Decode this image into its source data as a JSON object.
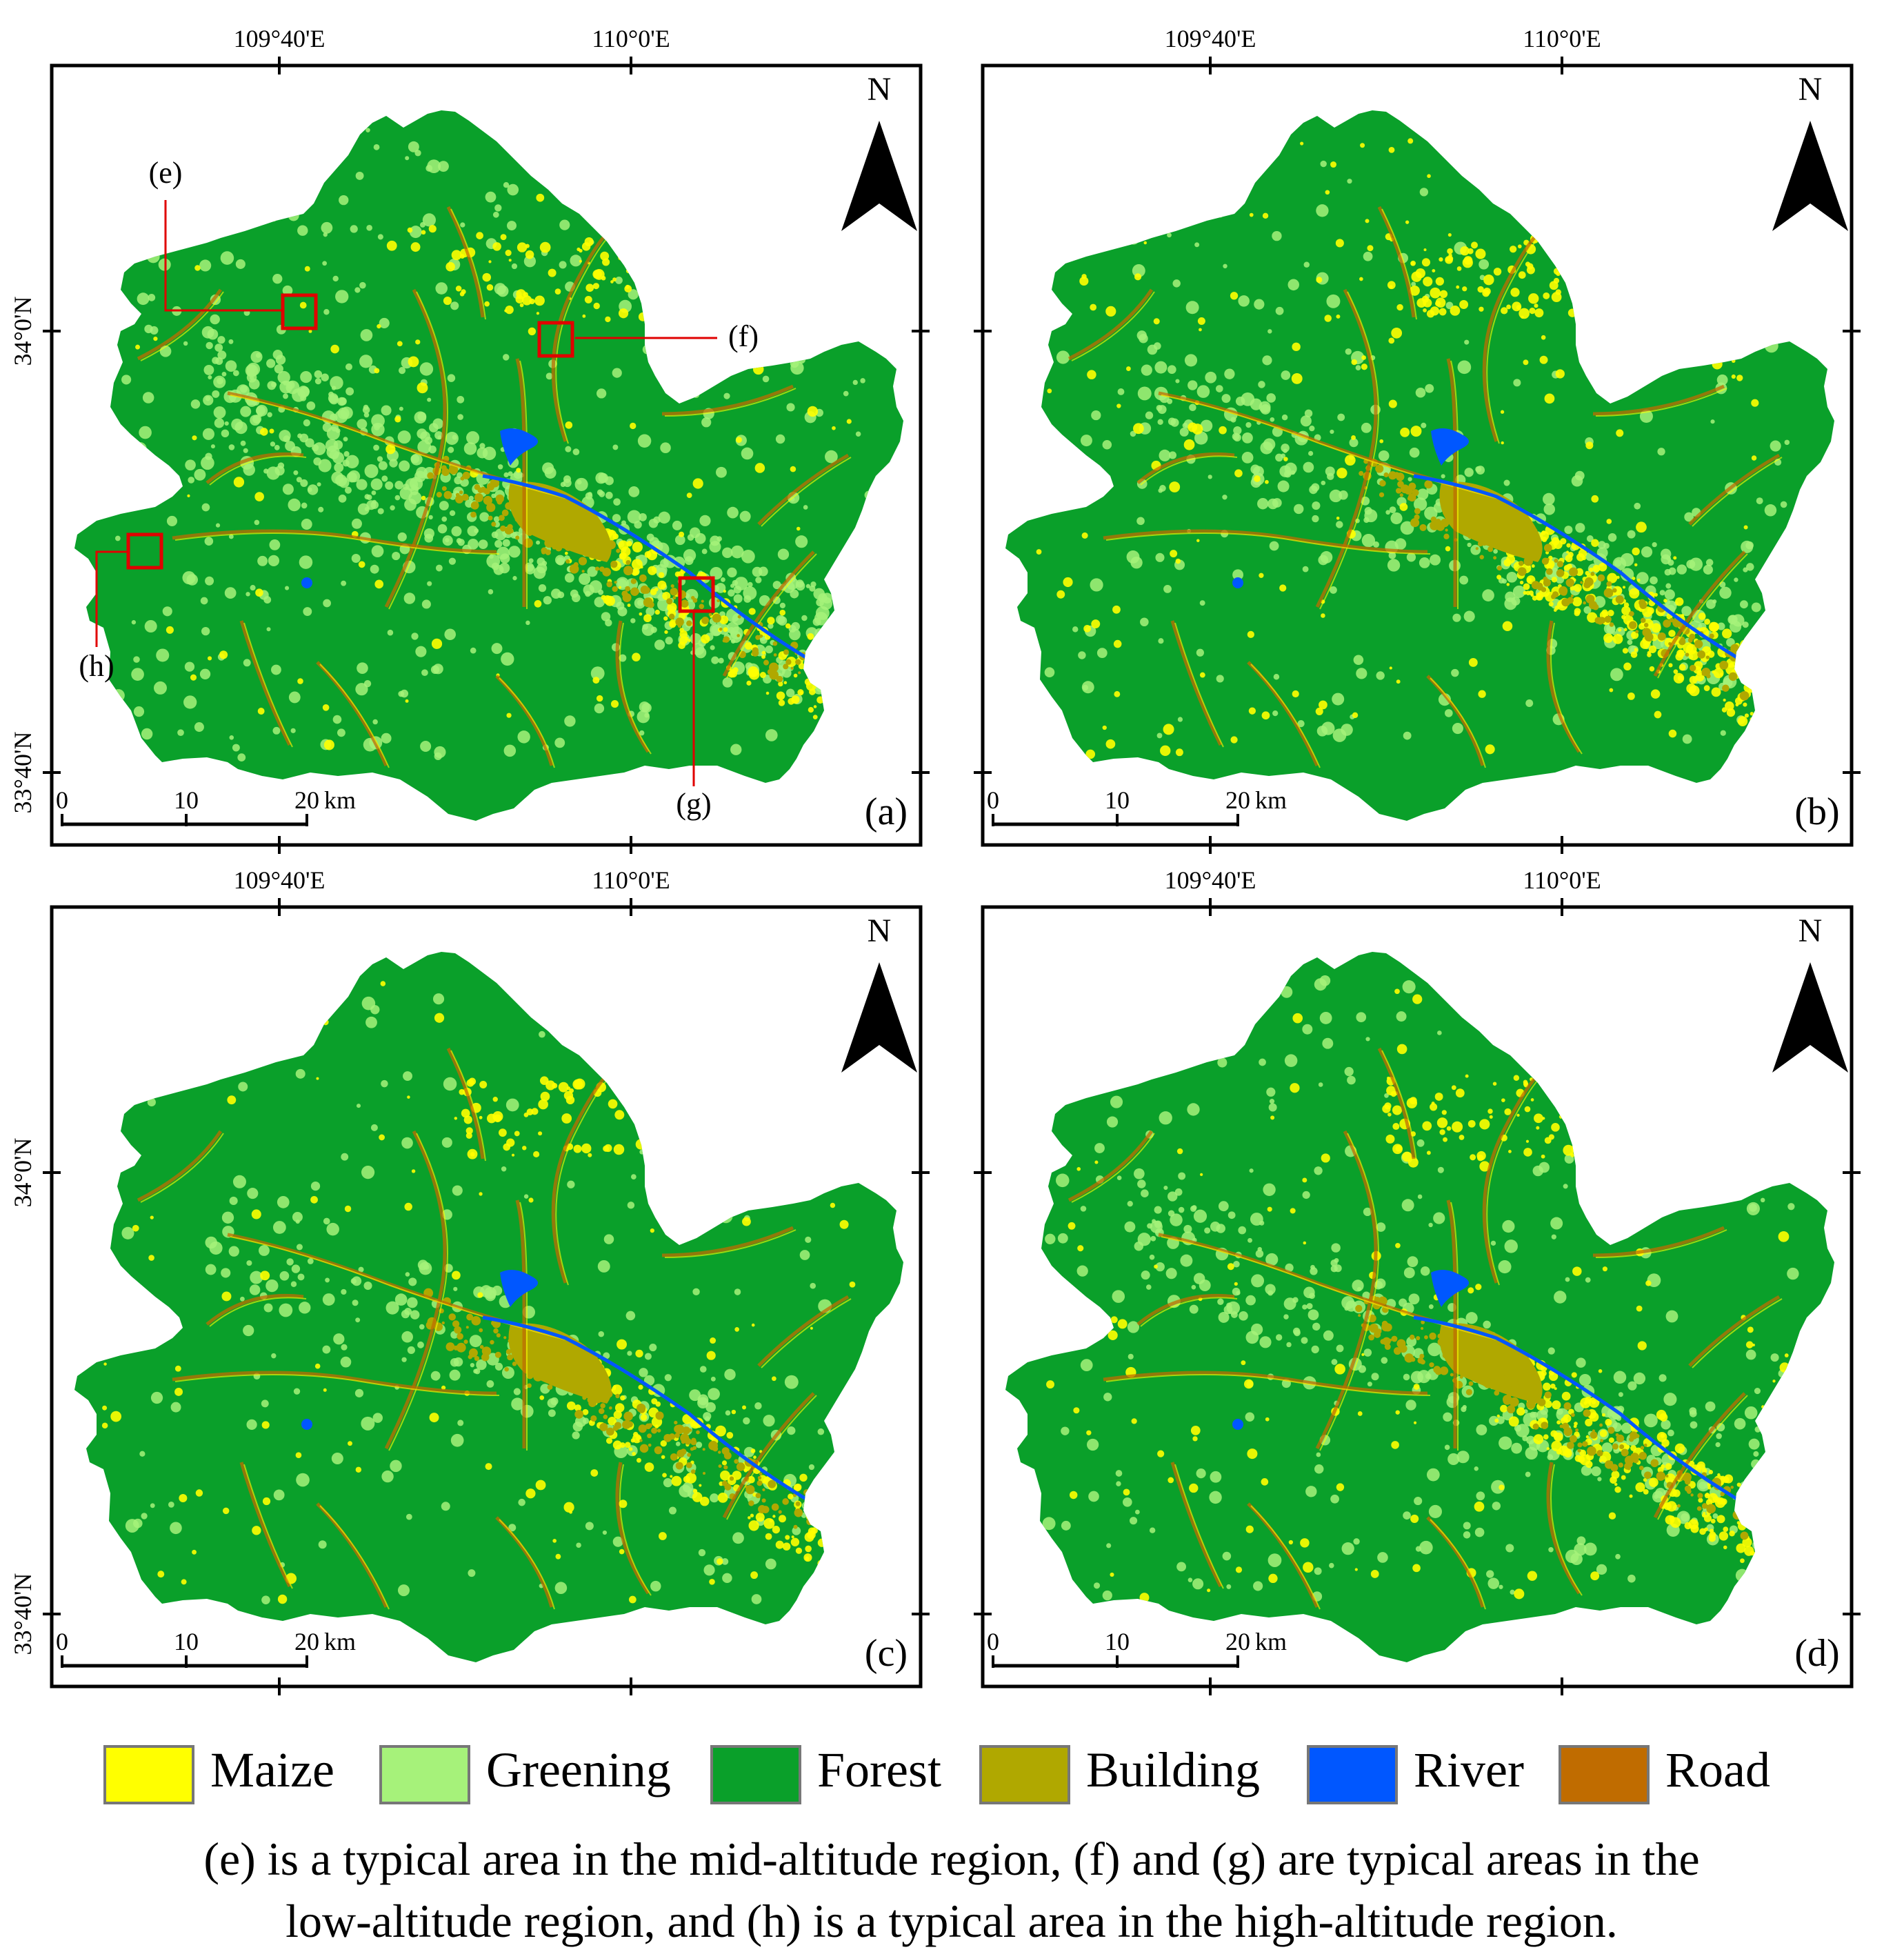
{
  "colors": {
    "maize": "#ffff00",
    "greening": "#a6f27a",
    "forest": "#0aa02a",
    "building": "#b0a800",
    "river": "#0057ff",
    "road": "#c06c00",
    "highlight_box": "#e00000"
  },
  "panels": [
    {
      "id": "a",
      "panel_label": "(a)",
      "variant": 0
    },
    {
      "id": "b",
      "panel_label": "(b)",
      "variant": 1
    },
    {
      "id": "c",
      "panel_label": "(c)",
      "variant": 2
    },
    {
      "id": "d",
      "panel_label": "(d)",
      "variant": 3
    }
  ],
  "map_frame": {
    "lon_labels": [
      "109°40'E",
      "110°0'E"
    ],
    "lat_labels": [
      "34°0'N",
      "33°40'N"
    ],
    "north_label": "N",
    "scale_bar": {
      "ticks": [
        "0",
        "10",
        "20"
      ],
      "unit": "km"
    }
  },
  "callouts": [
    {
      "id": "e",
      "label": "(e)",
      "region": "mid-altitude"
    },
    {
      "id": "f",
      "label": "(f)",
      "region": "low-altitude"
    },
    {
      "id": "g",
      "label": "(g)",
      "region": "low-altitude"
    },
    {
      "id": "h",
      "label": "(h)",
      "region": "high-altitude"
    }
  ],
  "legend": [
    {
      "label": "Maize",
      "color": "#ffff00"
    },
    {
      "label": "Greening",
      "color": "#a6f27a"
    },
    {
      "label": "Forest",
      "color": "#0aa02a"
    },
    {
      "label": "Building",
      "color": "#b0a800"
    },
    {
      "label": "River",
      "color": "#0057ff"
    },
    {
      "label": "Road",
      "color": "#c06c00"
    }
  ],
  "caption": {
    "line1": "(e) is a typical area in the mid-altitude region, (f) and (g) are typical areas in the",
    "line2": "low-altitude region, and (h) is a typical area in the high-altitude region."
  }
}
